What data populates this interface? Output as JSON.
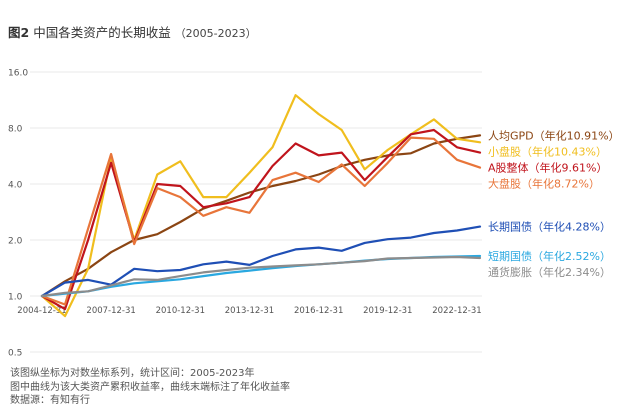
{
  "title": {
    "fig_label": "图2",
    "text": "中国各类资产的长期收益",
    "range": "（2005-2023）"
  },
  "notes": [
    "该图纵坐标为对数坐标系列，统计区间：2005-2023年",
    "图中曲线为该大类资产累积收益率，曲线末端标注了年化收益率",
    "数据源：有知有行"
  ],
  "chart_data": {
    "type": "line",
    "yscale": "log2",
    "ylim": [
      0.5,
      16.0
    ],
    "yticks": [
      "0.5",
      "1.0",
      "2.0",
      "4.0",
      "8.0",
      "16.0"
    ],
    "ytick_values": [
      0.5,
      1,
      2,
      4,
      8,
      16
    ],
    "xlim": [
      "2004-12-31",
      "2023-12-31"
    ],
    "xticks": [
      "2004-12-31",
      "2007-12-31",
      "2010-12-31",
      "2013-12-31",
      "2016-12-31",
      "2019-12-31",
      "2022-12-31"
    ],
    "x": [
      "2004-12-31",
      "2005-12-31",
      "2006-12-31",
      "2007-12-31",
      "2008-12-31",
      "2009-12-31",
      "2010-12-31",
      "2011-12-31",
      "2012-12-31",
      "2013-12-31",
      "2014-12-31",
      "2015-12-31",
      "2016-12-31",
      "2017-12-31",
      "2018-12-31",
      "2019-12-31",
      "2020-12-31",
      "2021-12-31",
      "2022-12-31",
      "2023-12-31"
    ],
    "series": [
      {
        "name": "人均GPD",
        "label": "人均GPD（年化10.91%）",
        "color": "#8B4513",
        "values": [
          1.0,
          1.2,
          1.4,
          1.72,
          2.0,
          2.15,
          2.5,
          2.95,
          3.25,
          3.6,
          3.9,
          4.15,
          4.5,
          5.0,
          5.4,
          5.7,
          5.85,
          6.6,
          7.0,
          7.3
        ]
      },
      {
        "name": "小盘股",
        "label": "小盘股（年化10.43%）",
        "color": "#F0BE1E",
        "values": [
          1.0,
          0.78,
          1.4,
          5.6,
          2.0,
          4.5,
          5.3,
          3.4,
          3.4,
          4.6,
          6.3,
          12.0,
          9.5,
          7.8,
          4.8,
          6.1,
          7.4,
          8.9,
          7.0,
          6.7
        ]
      },
      {
        "name": "A股整体",
        "label": "A股整体（年化9.61%）",
        "color": "#C0141C",
        "values": [
          1.0,
          0.85,
          2.0,
          5.2,
          1.95,
          4.0,
          3.9,
          3.0,
          3.15,
          3.4,
          5.0,
          6.6,
          5.7,
          5.9,
          4.2,
          5.6,
          7.4,
          7.8,
          6.3,
          5.9
        ]
      },
      {
        "name": "大盘股",
        "label": "大盘股（年化8.72%）",
        "color": "#E8753A",
        "values": [
          1.0,
          0.9,
          2.3,
          5.8,
          1.9,
          3.8,
          3.4,
          2.7,
          3.0,
          2.8,
          4.2,
          4.6,
          4.1,
          5.1,
          3.9,
          5.2,
          7.1,
          7.0,
          5.4,
          4.9
        ]
      },
      {
        "name": "长期国债",
        "label": "长期国债（年化4.28%）",
        "color": "#1F4FB5",
        "values": [
          1.0,
          1.18,
          1.22,
          1.15,
          1.4,
          1.36,
          1.38,
          1.48,
          1.53,
          1.47,
          1.64,
          1.78,
          1.82,
          1.75,
          1.93,
          2.02,
          2.06,
          2.18,
          2.25,
          2.36
        ]
      },
      {
        "name": "短期国债",
        "label": "短期国债（年化2.52%）",
        "color": "#2AA8E0",
        "values": [
          1.0,
          1.03,
          1.06,
          1.12,
          1.17,
          1.2,
          1.23,
          1.28,
          1.33,
          1.37,
          1.41,
          1.45,
          1.48,
          1.51,
          1.55,
          1.58,
          1.6,
          1.62,
          1.63,
          1.64
        ]
      },
      {
        "name": "通货膨胀",
        "label": "通货膨胀（年化2.34%）",
        "color": "#8C8C8C",
        "values": [
          1.0,
          1.04,
          1.06,
          1.14,
          1.23,
          1.22,
          1.28,
          1.34,
          1.38,
          1.42,
          1.44,
          1.46,
          1.48,
          1.51,
          1.54,
          1.59,
          1.6,
          1.61,
          1.62,
          1.6
        ]
      }
    ]
  }
}
